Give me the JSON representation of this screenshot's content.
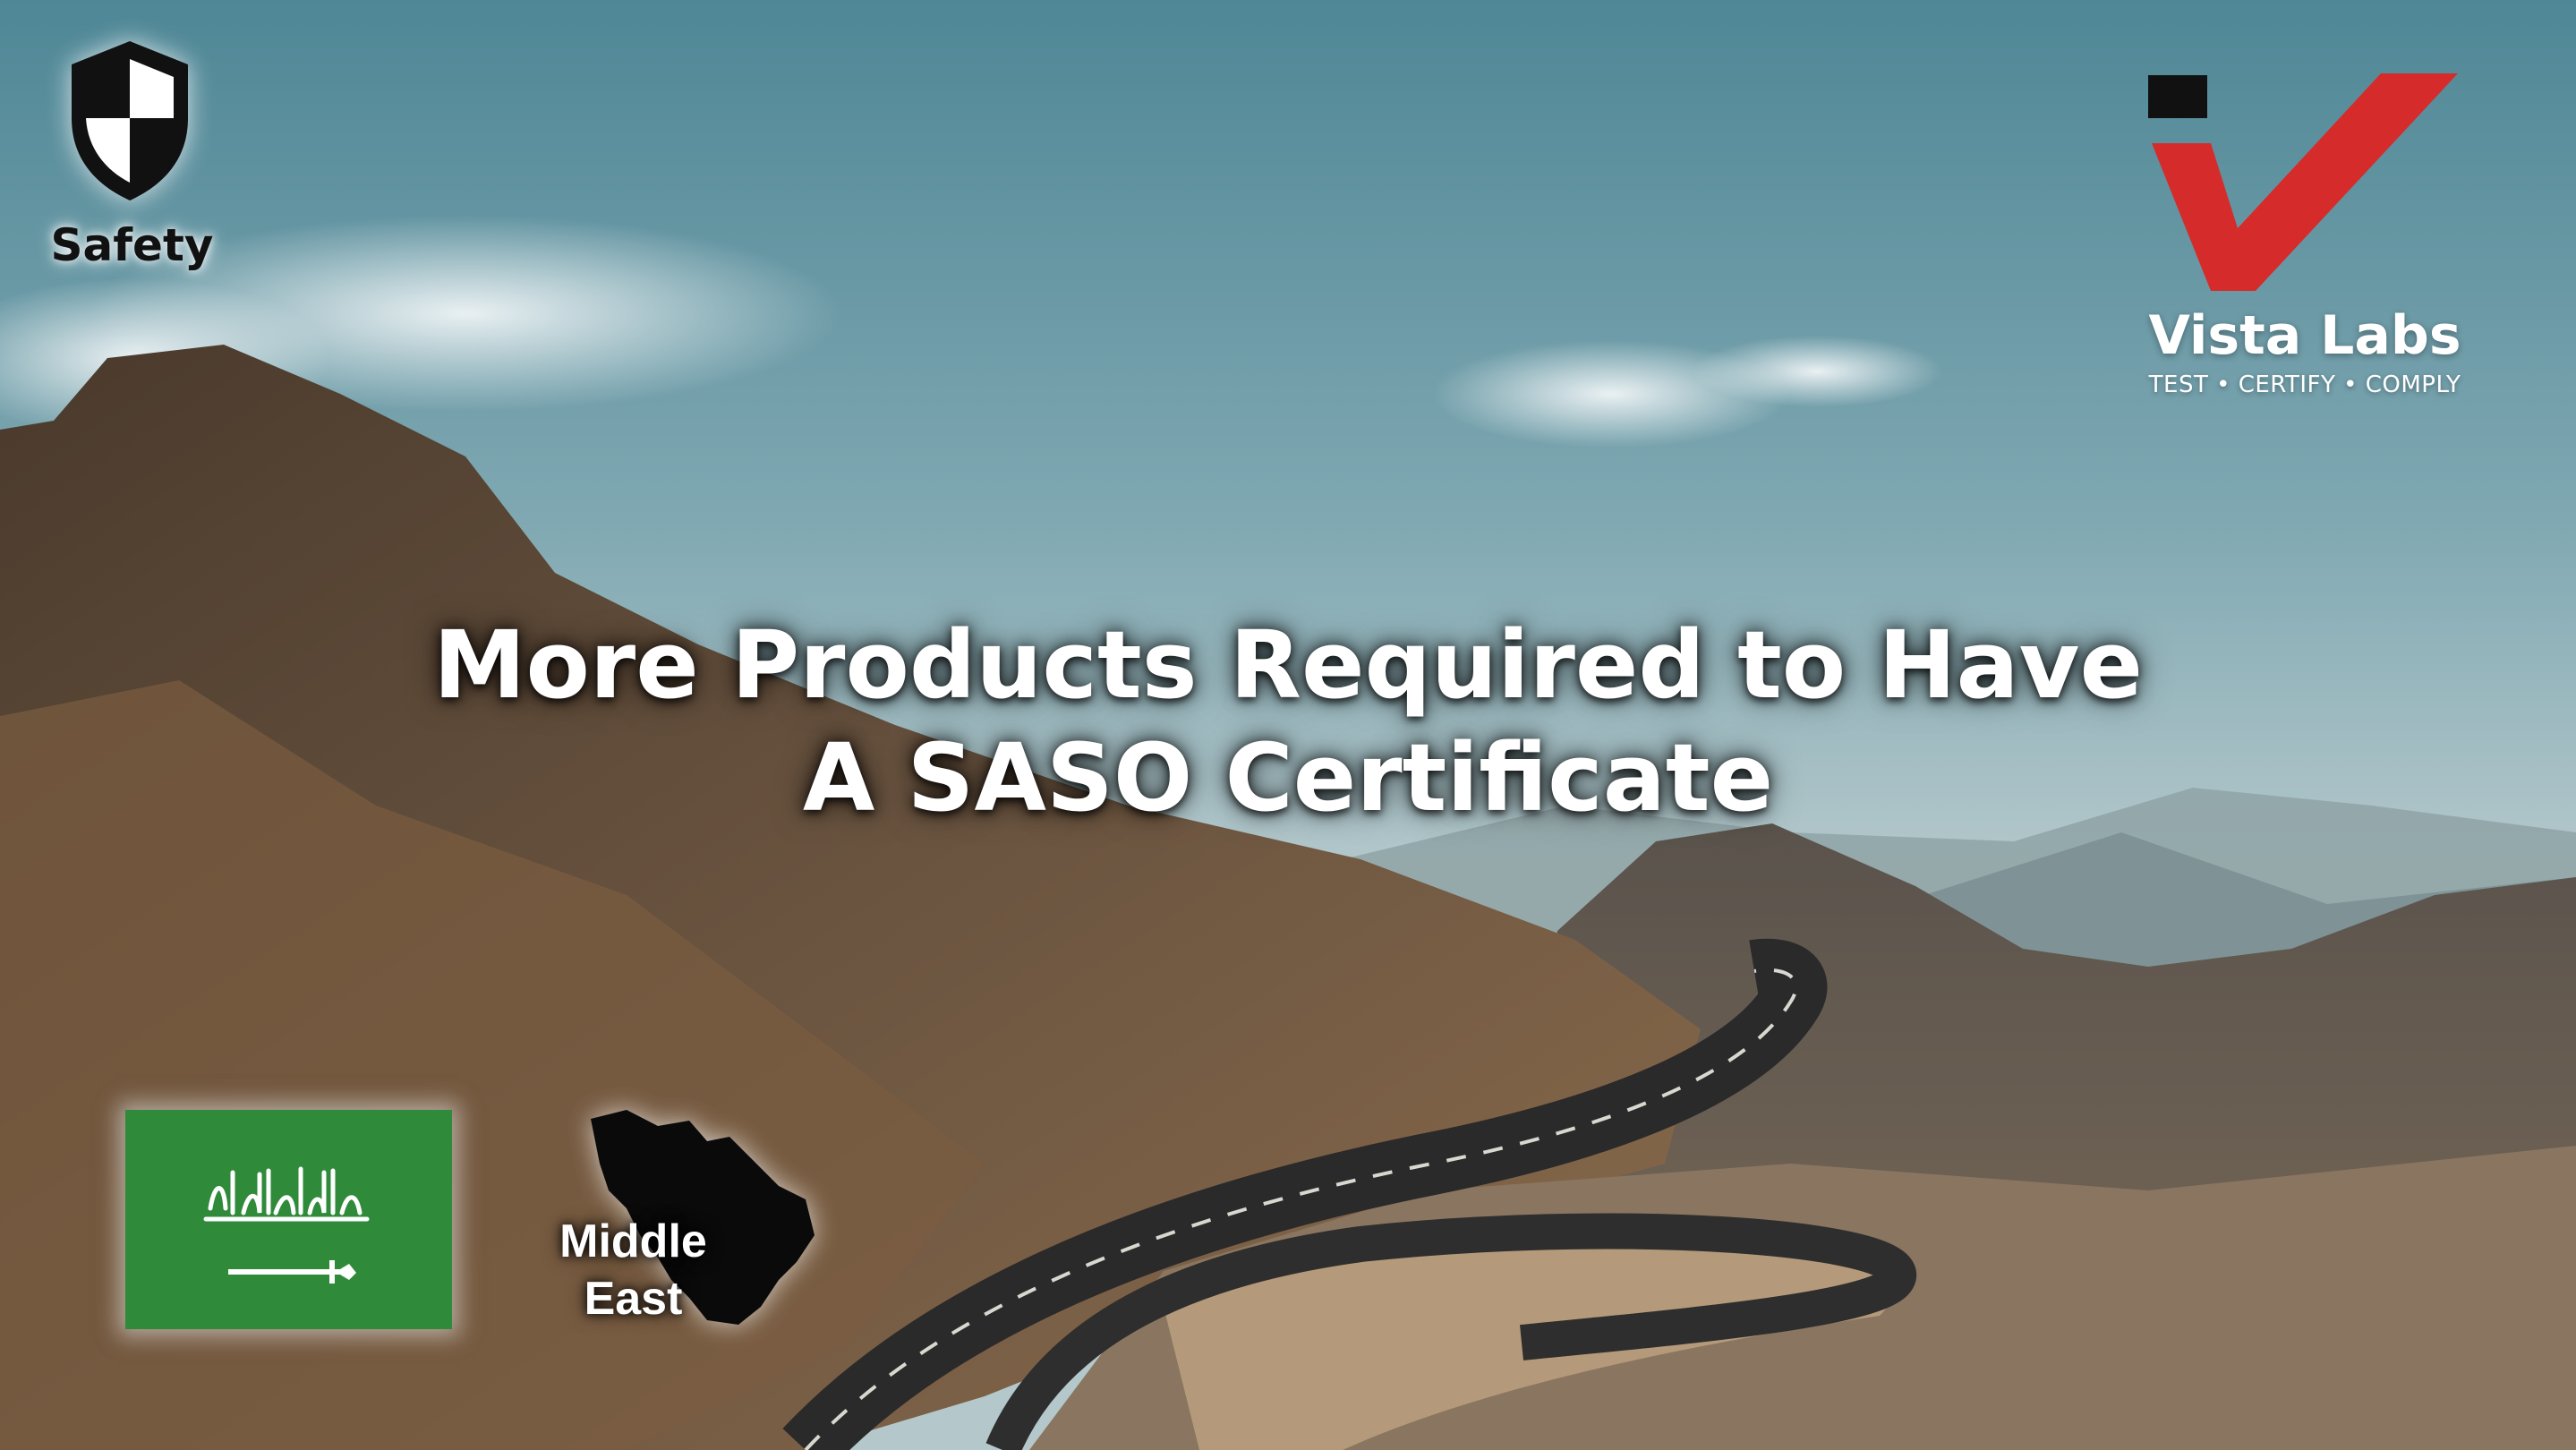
{
  "safety": {
    "label": "Safety",
    "icon": "shield-icon"
  },
  "logo": {
    "name": "Vista Labs",
    "tagline": "TEST • CERTIFY • COMPLY",
    "icon": "vista-labs-logo",
    "accent_color": "#d62b2b"
  },
  "headline": {
    "line1": "More Products Required to Have",
    "line2": "A SASO Certificate"
  },
  "flag": {
    "icon": "saudi-arabia-flag-icon",
    "color": "#2f8b3a"
  },
  "region": {
    "icon": "middle-east-map-icon",
    "label_line1": "Middle",
    "label_line2": "East"
  }
}
